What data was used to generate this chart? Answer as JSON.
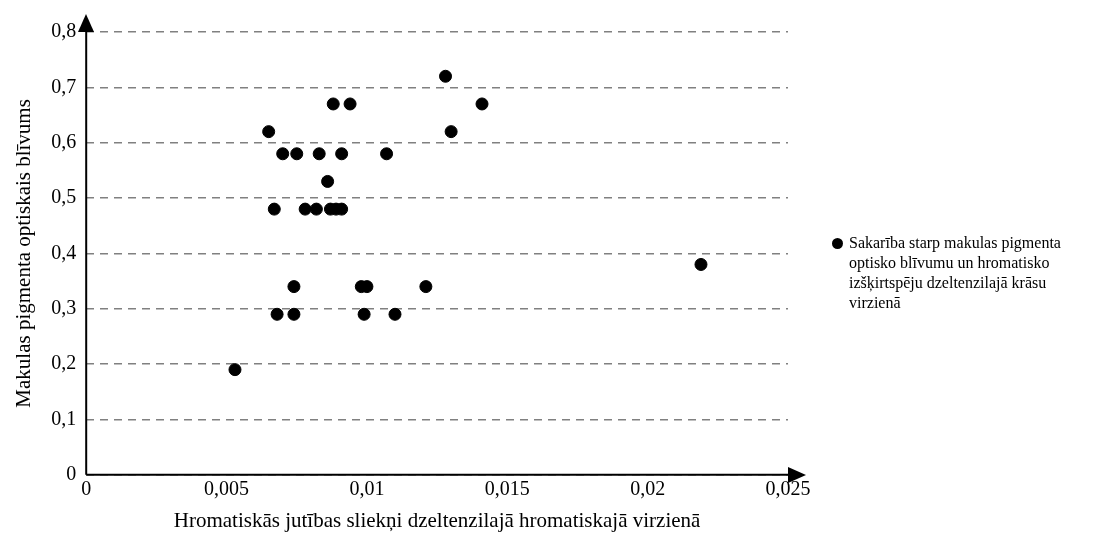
{
  "chart_data": {
    "type": "scatter",
    "xlabel": "Hromatiskās jutības sliekņi dzeltenzilajā hromatiskajā virzienā",
    "ylabel": "Makulas pigmenta optiskais blīvums",
    "series": [
      {
        "name": "Sakarība starp makulas pigmenta optisko blīvumu un hromatisko izšķirtspēju dzeltenzilajā krāsu virzienā",
        "color": "#000000",
        "x": [
          0.0067,
          0.0078,
          0.0082,
          0.0087,
          0.0089,
          0.0091,
          0.007,
          0.0075,
          0.0083,
          0.0091,
          0.0107,
          0.0088,
          0.0094,
          0.0141,
          0.0074,
          0.0098,
          0.01,
          0.0121,
          0.0068,
          0.0074,
          0.0099,
          0.011,
          0.0065,
          0.013,
          0.0128,
          0.0086,
          0.0053,
          0.0219
        ],
        "values": [
          0.48,
          0.48,
          0.48,
          0.48,
          0.48,
          0.48,
          0.58,
          0.58,
          0.58,
          0.58,
          0.58,
          0.67,
          0.67,
          0.67,
          0.34,
          0.34,
          0.34,
          0.34,
          0.29,
          0.29,
          0.29,
          0.29,
          0.62,
          0.62,
          0.72,
          0.53,
          0.19,
          0.38
        ]
      }
    ],
    "xlim": [
      0,
      0.025
    ],
    "xticks": [
      0,
      {
        "value": 0.005,
        "label": "0,005"
      },
      {
        "value": 0.01,
        "label": "0,01"
      },
      {
        "value": 0.015,
        "label": "0,015"
      },
      {
        "value": 0.02,
        "label": "0,02"
      },
      {
        "value": 0.025,
        "label": "0,025"
      }
    ],
    "ylim": [
      0,
      0.8
    ],
    "yticks": [
      0,
      {
        "value": 0.1,
        "label": "0,1"
      },
      {
        "value": 0.2,
        "label": "0,2"
      },
      {
        "value": 0.3,
        "label": "0,3"
      },
      {
        "value": 0.4,
        "label": "0,4"
      },
      {
        "value": 0.5,
        "label": "0,5"
      },
      {
        "value": 0.6,
        "label": "0,6"
      },
      {
        "value": 0.7,
        "label": "0,7"
      },
      {
        "value": 0.8,
        "label": "0,8"
      }
    ],
    "grid": "y",
    "legend": "right",
    "marker": "circle"
  }
}
